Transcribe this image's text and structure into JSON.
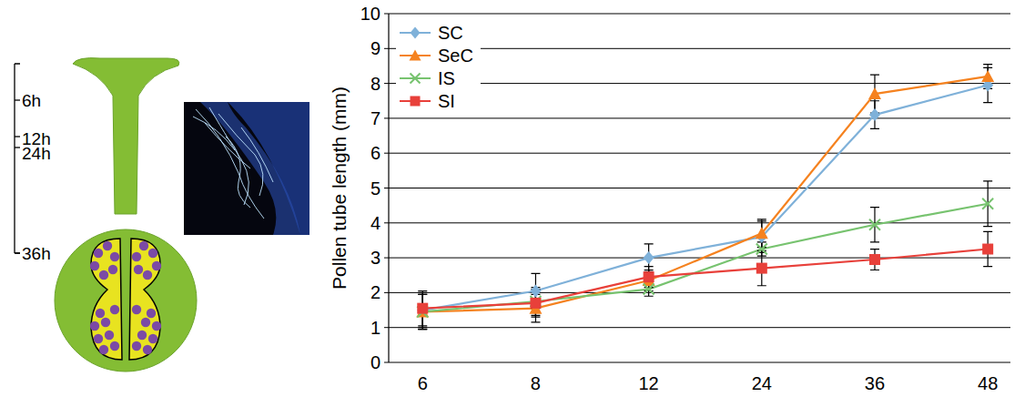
{
  "chart_data": {
    "type": "line",
    "y_label": "Pollen tube length (mm)",
    "annotations": [
      "6h",
      "12h",
      "24h",
      "36h"
    ],
    "categories": [
      "6",
      "8",
      "12",
      "24",
      "36",
      "48"
    ],
    "ylim": [
      0,
      10
    ],
    "yticks": [
      0,
      1,
      2,
      3,
      4,
      5,
      6,
      7,
      8,
      9,
      10
    ],
    "grid": true,
    "legend": "top-left",
    "series": [
      {
        "name": "SC",
        "color": "#7fb1d9",
        "marker": "diamond",
        "values": [
          1.5,
          2.05,
          3.0,
          3.6,
          7.1,
          7.95
        ],
        "errors": [
          0.5,
          0.5,
          0.4,
          0.45,
          0.4,
          0.5
        ]
      },
      {
        "name": "SeC",
        "color": "#f5821f",
        "marker": "triangle",
        "values": [
          1.45,
          1.55,
          2.35,
          3.7,
          7.7,
          8.2
        ],
        "errors": [
          0.5,
          0.4,
          0.3,
          0.4,
          0.55,
          0.35
        ]
      },
      {
        "name": "IS",
        "color": "#77c36f",
        "marker": "x",
        "values": [
          1.45,
          1.75,
          2.1,
          3.25,
          3.95,
          4.55
        ],
        "errors": [
          0.5,
          0.4,
          0.2,
          0.2,
          0.5,
          0.65
        ]
      },
      {
        "name": "SI",
        "color": "#e8403a",
        "marker": "square",
        "values": [
          1.55,
          1.7,
          2.45,
          2.7,
          2.95,
          3.25
        ],
        "errors": [
          0.5,
          0.4,
          0.3,
          0.5,
          0.3,
          0.5
        ]
      }
    ]
  }
}
